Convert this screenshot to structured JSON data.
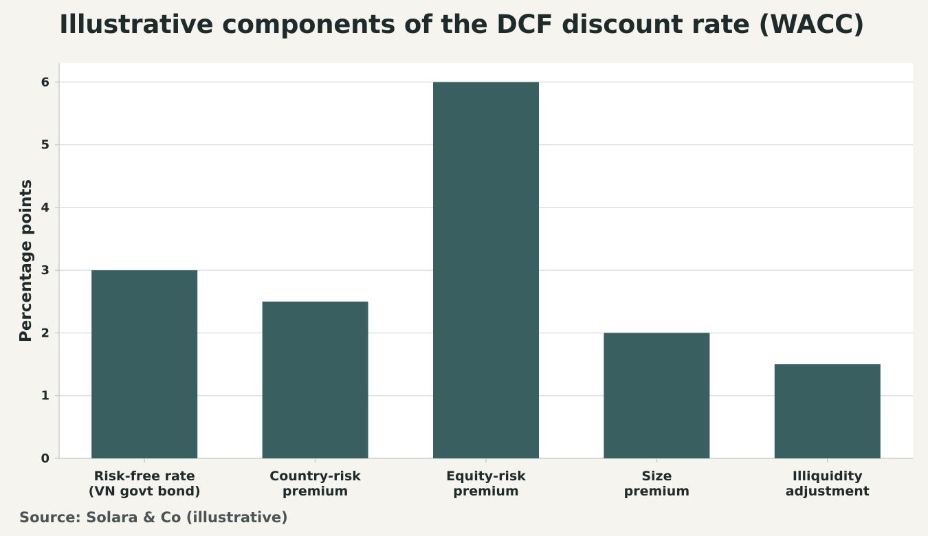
{
  "chart_data": {
    "type": "bar",
    "title": "Illustrative components of the DCF discount rate (WACC)",
    "ylabel": "Percentage points",
    "xlabel": "",
    "categories": [
      [
        "Risk-free rate",
        "(VN govt bond)"
      ],
      [
        "Country-risk",
        "premium"
      ],
      [
        "Equity-risk",
        "premium"
      ],
      [
        "Size",
        "premium"
      ],
      [
        "Illiquidity",
        "adjustment"
      ]
    ],
    "values": [
      3,
      2.5,
      6,
      2,
      1.5
    ],
    "ylim": [
      0,
      6.3
    ],
    "yticks": [
      0,
      1,
      2,
      3,
      4,
      5,
      6
    ],
    "grid": true,
    "bar_color": "#3a5f60",
    "grid_color": "#dde1e3",
    "source": "Source: Solara & Co (illustrative)"
  }
}
